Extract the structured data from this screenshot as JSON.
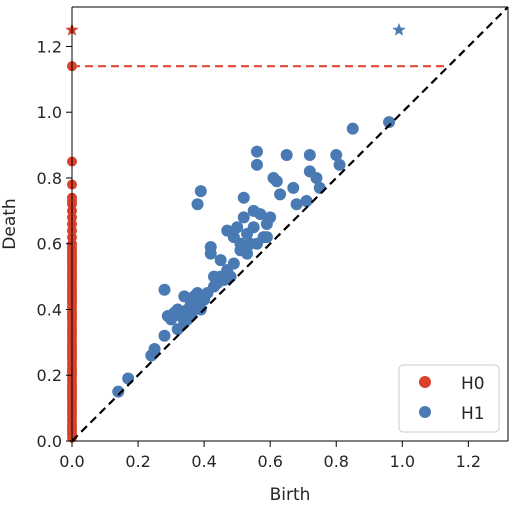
{
  "chart_data": {
    "type": "scatter",
    "title": "",
    "xlabel": "Birth",
    "ylabel": "Death",
    "xlim": [
      0,
      1.32
    ],
    "ylim": [
      0,
      1.32
    ],
    "xticks": [
      "0.0",
      "0.2",
      "0.4",
      "0.6",
      "0.8",
      "1.0",
      "1.2"
    ],
    "yticks": [
      "0.0",
      "0.2",
      "0.4",
      "0.6",
      "0.8",
      "1.0",
      "1.2"
    ],
    "xtick_values": [
      0,
      0.2,
      0.4,
      0.6,
      0.8,
      1.0,
      1.2
    ],
    "ytick_values": [
      0,
      0.2,
      0.4,
      0.6,
      0.8,
      1.0,
      1.2
    ],
    "grid": false,
    "legend_position": "bottom-right",
    "diagonal_color": "#000000",
    "infinity_line": {
      "y": 1.14,
      "x_end": 1.14,
      "color": "#e24a33"
    },
    "series": [
      {
        "name": "H0",
        "color": "#d9412b",
        "points": [
          [
            0,
            0.01
          ],
          [
            0,
            0.02
          ],
          [
            0,
            0.03
          ],
          [
            0,
            0.04
          ],
          [
            0,
            0.05
          ],
          [
            0,
            0.06
          ],
          [
            0,
            0.07
          ],
          [
            0,
            0.08
          ],
          [
            0,
            0.09
          ],
          [
            0,
            0.1
          ],
          [
            0,
            0.11
          ],
          [
            0,
            0.12
          ],
          [
            0,
            0.13
          ],
          [
            0,
            0.14
          ],
          [
            0,
            0.15
          ],
          [
            0,
            0.16
          ],
          [
            0,
            0.17
          ],
          [
            0,
            0.18
          ],
          [
            0,
            0.19
          ],
          [
            0,
            0.2
          ],
          [
            0,
            0.21
          ],
          [
            0,
            0.22
          ],
          [
            0,
            0.23
          ],
          [
            0,
            0.24
          ],
          [
            0,
            0.25
          ],
          [
            0,
            0.26
          ],
          [
            0,
            0.27
          ],
          [
            0,
            0.28
          ],
          [
            0,
            0.29
          ],
          [
            0,
            0.3
          ],
          [
            0,
            0.31
          ],
          [
            0,
            0.32
          ],
          [
            0,
            0.33
          ],
          [
            0,
            0.34
          ],
          [
            0,
            0.35
          ],
          [
            0,
            0.36
          ],
          [
            0,
            0.37
          ],
          [
            0,
            0.38
          ],
          [
            0,
            0.39
          ],
          [
            0,
            0.4
          ],
          [
            0,
            0.41
          ],
          [
            0,
            0.42
          ],
          [
            0,
            0.43
          ],
          [
            0,
            0.44
          ],
          [
            0,
            0.45
          ],
          [
            0,
            0.46
          ],
          [
            0,
            0.47
          ],
          [
            0,
            0.48
          ],
          [
            0,
            0.49
          ],
          [
            0,
            0.5
          ],
          [
            0,
            0.51
          ],
          [
            0,
            0.52
          ],
          [
            0,
            0.53
          ],
          [
            0,
            0.54
          ],
          [
            0,
            0.55
          ],
          [
            0,
            0.56
          ],
          [
            0,
            0.57
          ],
          [
            0,
            0.58
          ],
          [
            0,
            0.59
          ],
          [
            0,
            0.6
          ],
          [
            0,
            0.62
          ],
          [
            0,
            0.64
          ],
          [
            0,
            0.66
          ],
          [
            0,
            0.68
          ],
          [
            0,
            0.7
          ],
          [
            0,
            0.72
          ],
          [
            0,
            0.73
          ],
          [
            0,
            0.74
          ],
          [
            0,
            0.78
          ],
          [
            0,
            0.85
          ],
          [
            0,
            1.14
          ]
        ],
        "infinite_points": [
          [
            0,
            1.25
          ]
        ]
      },
      {
        "name": "H1",
        "color": "#4a7ab4",
        "points": [
          [
            0.14,
            0.15
          ],
          [
            0.17,
            0.19
          ],
          [
            0.24,
            0.26
          ],
          [
            0.25,
            0.28
          ],
          [
            0.28,
            0.46
          ],
          [
            0.28,
            0.32
          ],
          [
            0.29,
            0.38
          ],
          [
            0.3,
            0.37
          ],
          [
            0.31,
            0.39
          ],
          [
            0.32,
            0.34
          ],
          [
            0.32,
            0.4
          ],
          [
            0.33,
            0.38
          ],
          [
            0.34,
            0.36
          ],
          [
            0.34,
            0.44
          ],
          [
            0.35,
            0.4
          ],
          [
            0.35,
            0.37
          ],
          [
            0.36,
            0.42
          ],
          [
            0.36,
            0.38
          ],
          [
            0.37,
            0.44
          ],
          [
            0.37,
            0.4
          ],
          [
            0.38,
            0.72
          ],
          [
            0.38,
            0.42
          ],
          [
            0.38,
            0.45
          ],
          [
            0.39,
            0.76
          ],
          [
            0.39,
            0.4
          ],
          [
            0.4,
            0.43
          ],
          [
            0.41,
            0.45
          ],
          [
            0.42,
            0.59
          ],
          [
            0.42,
            0.57
          ],
          [
            0.43,
            0.5
          ],
          [
            0.43,
            0.47
          ],
          [
            0.44,
            0.48
          ],
          [
            0.45,
            0.5
          ],
          [
            0.45,
            0.55
          ],
          [
            0.46,
            0.49
          ],
          [
            0.47,
            0.64
          ],
          [
            0.47,
            0.52
          ],
          [
            0.48,
            0.5
          ],
          [
            0.49,
            0.62
          ],
          [
            0.49,
            0.54
          ],
          [
            0.5,
            0.65
          ],
          [
            0.51,
            0.6
          ],
          [
            0.51,
            0.58
          ],
          [
            0.52,
            0.74
          ],
          [
            0.52,
            0.68
          ],
          [
            0.53,
            0.57
          ],
          [
            0.53,
            0.63
          ],
          [
            0.54,
            0.6
          ],
          [
            0.55,
            0.7
          ],
          [
            0.55,
            0.65
          ],
          [
            0.56,
            0.88
          ],
          [
            0.56,
            0.84
          ],
          [
            0.56,
            0.6
          ],
          [
            0.57,
            0.69
          ],
          [
            0.58,
            0.62
          ],
          [
            0.59,
            0.66
          ],
          [
            0.59,
            0.62
          ],
          [
            0.6,
            0.68
          ],
          [
            0.61,
            0.8
          ],
          [
            0.62,
            0.79
          ],
          [
            0.63,
            0.75
          ],
          [
            0.65,
            0.87
          ],
          [
            0.67,
            0.77
          ],
          [
            0.68,
            0.72
          ],
          [
            0.71,
            0.73
          ],
          [
            0.72,
            0.87
          ],
          [
            0.72,
            0.82
          ],
          [
            0.74,
            0.8
          ],
          [
            0.75,
            0.77
          ],
          [
            0.8,
            0.87
          ],
          [
            0.81,
            0.84
          ],
          [
            0.85,
            0.95
          ],
          [
            0.96,
            0.97
          ]
        ],
        "infinite_points": [
          [
            0.99,
            1.25
          ]
        ]
      }
    ]
  }
}
